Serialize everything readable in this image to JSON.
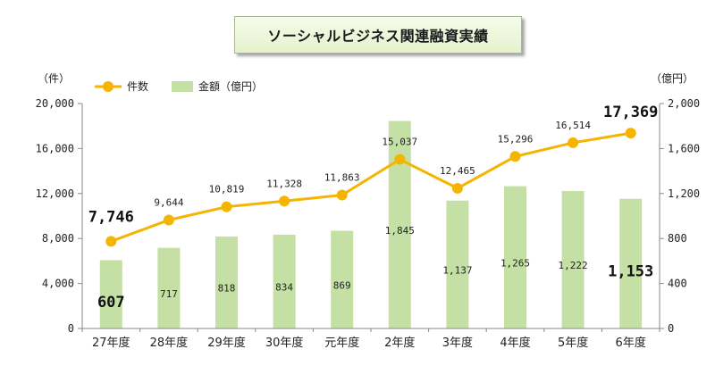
{
  "title": "ソーシャルビジネス関連融資実績",
  "chart_data": {
    "type": "bar+line",
    "title": "ソーシャルビジネス関連融資実績",
    "categories": [
      "27年度",
      "28年度",
      "29年度",
      "30年度",
      "元年度",
      "2年度",
      "3年度",
      "4年度",
      "5年度",
      "6年度"
    ],
    "series": [
      {
        "name": "件数",
        "type": "line",
        "axis": "left",
        "color": "#f5b400",
        "values": [
          7746,
          9644,
          10819,
          11328,
          11863,
          15037,
          12465,
          15296,
          16514,
          17369
        ],
        "labels": [
          "7,746",
          "9,644",
          "10,819",
          "11,328",
          "11,863",
          "15,037",
          "12,465",
          "15,296",
          "16,514",
          "17,369"
        ]
      },
      {
        "name": "金額（億円）",
        "type": "bar",
        "axis": "right",
        "color": "#c5e0a5",
        "values": [
          607,
          717,
          818,
          834,
          869,
          1845,
          1137,
          1265,
          1222,
          1153
        ],
        "labels": [
          "607",
          "717",
          "818",
          "834",
          "869",
          "1,845",
          "1,137",
          "1,265",
          "1,222",
          "1,153"
        ]
      }
    ],
    "y_left": {
      "unit": "（件）",
      "range": [
        0,
        20000
      ],
      "ticks": [
        0,
        4000,
        8000,
        12000,
        16000,
        20000
      ],
      "tick_labels": [
        "0",
        "4,000",
        "8,000",
        "12,000",
        "16,000",
        "20,000"
      ]
    },
    "y_right": {
      "unit": "（億円）",
      "range": [
        0,
        2000
      ],
      "ticks": [
        0,
        400,
        800,
        1200,
        1600,
        2000
      ],
      "tick_labels": [
        "0",
        "400",
        "800",
        "1,200",
        "1,600",
        "2,000"
      ]
    },
    "legend": {
      "placement": "top-left",
      "items": [
        {
          "label": "件数",
          "kind": "line-marker",
          "color": "#f5b400"
        },
        {
          "label": "金額（億円）",
          "kind": "bar",
          "color": "#c5e0a5"
        }
      ]
    },
    "highlighted_labels": {
      "line": [
        0,
        9
      ],
      "bar": [
        0,
        9
      ]
    },
    "grid": false
  }
}
